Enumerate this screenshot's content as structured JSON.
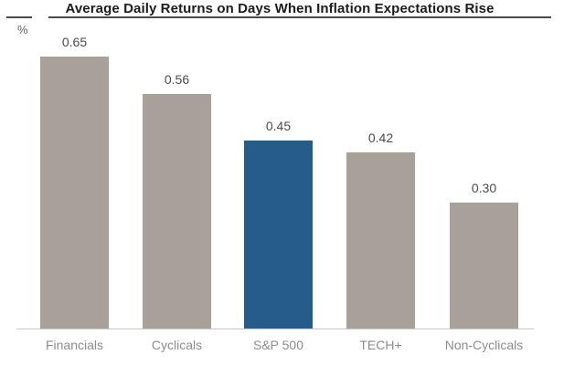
{
  "header": {
    "title": "Average Daily Returns on Days When Inflation Expectations Rise",
    "unit_label": "%"
  },
  "colors": {
    "bar_default": "#a8a19a",
    "bar_highlight": "#245d8c",
    "title_text": "#1c1c1c",
    "value_label": "#4a4a4a",
    "category_label": "#8d8d8d",
    "axis_line": "#c7c5c2",
    "title_rule": "#4a4a4a"
  },
  "chart_data": {
    "type": "bar",
    "title": "Average Daily Returns on Days When Inflation Expectations Rise",
    "unit": "%",
    "categories": [
      "Financials",
      "Cyclicals",
      "S&P 500",
      "TECH+",
      "Non-Cyclicals"
    ],
    "values": [
      0.65,
      0.56,
      0.45,
      0.42,
      0.3
    ],
    "value_labels": [
      "0.65",
      "0.56",
      "0.45",
      "0.42",
      "0.30"
    ],
    "highlighted_category": "S&P 500",
    "xlabel": "",
    "ylabel": "%",
    "ylim": [
      0,
      0.75
    ],
    "grid": false,
    "legend": false,
    "data_labels_shown": true
  }
}
